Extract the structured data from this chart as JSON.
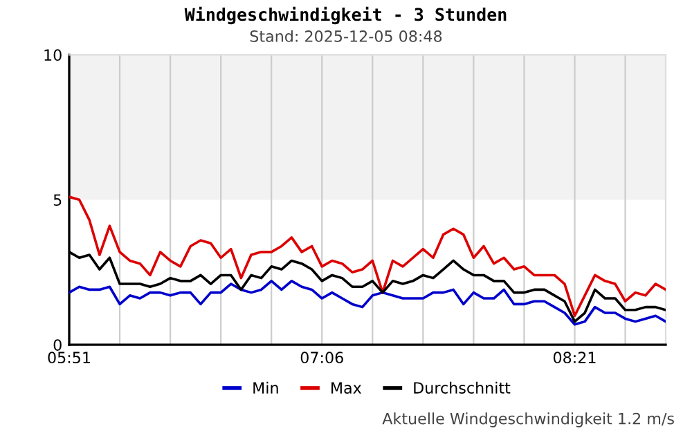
{
  "chart_data": {
    "type": "line",
    "title": "Windgeschwindigkeit - 3 Stunden",
    "subtitle": "Stand: 2025-12-05 08:48",
    "x": [
      5.85,
      5.9,
      5.95,
      6.0,
      6.05,
      6.1,
      6.15,
      6.2,
      6.25,
      6.3,
      6.35,
      6.4,
      6.45,
      6.5,
      6.55,
      6.6,
      6.65,
      6.7,
      6.75,
      6.8,
      6.85,
      6.9,
      6.95,
      7.0,
      7.05,
      7.1,
      7.15,
      7.2,
      7.25,
      7.3,
      7.35,
      7.4,
      7.45,
      7.5,
      7.55,
      7.6,
      7.65,
      7.7,
      7.75,
      7.8,
      7.85,
      7.9,
      7.95,
      8.0,
      8.05,
      8.1,
      8.15,
      8.2,
      8.25,
      8.3,
      8.35,
      8.4,
      8.45,
      8.5,
      8.55,
      8.6,
      8.65,
      8.7,
      8.75,
      8.8
    ],
    "series": [
      {
        "name": "Min",
        "color": "#0000cc",
        "values": [
          1.8,
          2.0,
          1.9,
          1.9,
          2.0,
          1.4,
          1.7,
          1.6,
          1.8,
          1.8,
          1.7,
          1.8,
          1.8,
          1.4,
          1.8,
          1.8,
          2.1,
          1.9,
          1.8,
          1.9,
          2.2,
          1.9,
          2.2,
          2.0,
          1.9,
          1.6,
          1.8,
          1.6,
          1.4,
          1.3,
          1.7,
          1.8,
          1.7,
          1.6,
          1.6,
          1.6,
          1.8,
          1.8,
          1.9,
          1.4,
          1.8,
          1.6,
          1.6,
          1.9,
          1.4,
          1.4,
          1.5,
          1.5,
          1.3,
          1.1,
          0.7,
          0.8,
          1.3,
          1.1,
          1.1,
          0.9,
          0.8,
          0.9,
          1.0,
          0.8
        ]
      },
      {
        "name": "Max",
        "color": "#dd0000",
        "values": [
          5.1,
          5.0,
          4.3,
          3.1,
          4.1,
          3.2,
          2.9,
          2.8,
          2.4,
          3.2,
          2.9,
          2.7,
          3.4,
          3.6,
          3.5,
          3.0,
          3.3,
          2.3,
          3.1,
          3.2,
          3.2,
          3.4,
          3.7,
          3.2,
          3.4,
          2.7,
          2.9,
          2.8,
          2.5,
          2.6,
          2.9,
          1.8,
          2.9,
          2.7,
          3.0,
          3.3,
          3.0,
          3.8,
          4.0,
          3.8,
          3.0,
          3.4,
          2.8,
          3.0,
          2.6,
          2.7,
          2.4,
          2.4,
          2.4,
          2.1,
          1.0,
          1.7,
          2.4,
          2.2,
          2.1,
          1.5,
          1.8,
          1.7,
          2.1,
          1.9
        ]
      },
      {
        "name": "Durchschnitt",
        "color": "#000000",
        "values": [
          3.2,
          3.0,
          3.1,
          2.6,
          3.0,
          2.1,
          2.1,
          2.1,
          2.0,
          2.1,
          2.3,
          2.2,
          2.2,
          2.4,
          2.1,
          2.4,
          2.4,
          1.9,
          2.4,
          2.3,
          2.7,
          2.6,
          2.9,
          2.8,
          2.6,
          2.2,
          2.4,
          2.3,
          2.0,
          2.0,
          2.2,
          1.8,
          2.2,
          2.1,
          2.2,
          2.4,
          2.3,
          2.6,
          2.9,
          2.6,
          2.4,
          2.4,
          2.2,
          2.2,
          1.8,
          1.8,
          1.9,
          1.9,
          1.7,
          1.5,
          0.8,
          1.1,
          1.9,
          1.6,
          1.6,
          1.2,
          1.2,
          1.3,
          1.3,
          1.2
        ]
      }
    ],
    "xlim": [
      5.85,
      8.8
    ],
    "xticks": [
      {
        "value": 5.85,
        "label": "05:51"
      },
      {
        "value": 6.1,
        "label": null
      },
      {
        "value": 6.35,
        "label": null
      },
      {
        "value": 6.6,
        "label": null
      },
      {
        "value": 6.85,
        "label": null
      },
      {
        "value": 7.1,
        "label": "07:06"
      },
      {
        "value": 7.35,
        "label": null
      },
      {
        "value": 7.6,
        "label": null
      },
      {
        "value": 7.85,
        "label": null
      },
      {
        "value": 8.1,
        "label": null
      },
      {
        "value": 8.35,
        "label": "08:21"
      },
      {
        "value": 8.6,
        "label": null
      }
    ],
    "ylim": [
      0,
      10
    ],
    "yticks": [
      0,
      5,
      10
    ],
    "bands": [
      {
        "axis": "y",
        "from": 5,
        "to": 10,
        "label": null,
        "color": "#f2f2f2"
      }
    ],
    "grid": "x",
    "legend": "bottom",
    "marker": "none",
    "line_style": "solid",
    "annotations": [
      "Aktuelle Windgeschwindigkeit 1.2 m/s"
    ]
  }
}
